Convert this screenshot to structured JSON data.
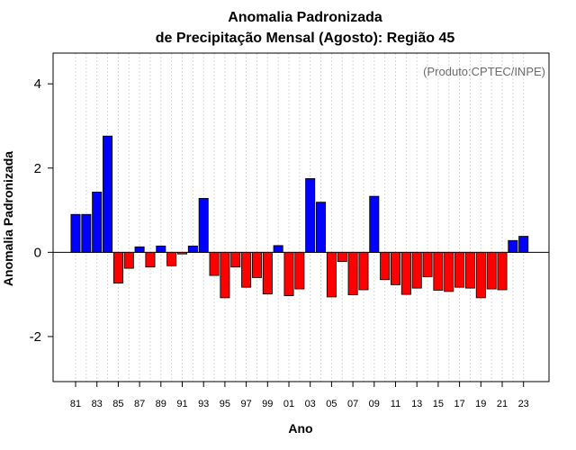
{
  "chart_data": {
    "type": "bar",
    "title_line1": "Anomalia Padronizada",
    "title_line2": "de Precipitação Mensal (Agosto): Região 45",
    "xlabel": "Ano",
    "ylabel": "Anomalia Padronizada",
    "annotation": "(Produto:CPTEC/INPE)",
    "ylim": [
      -3.07,
      4.73
    ],
    "yticks": [
      -2,
      0,
      2,
      4
    ],
    "ytick_labels": [
      "-2",
      "0",
      "2",
      "4"
    ],
    "years": [
      1981,
      1982,
      1983,
      1984,
      1985,
      1986,
      1987,
      1988,
      1989,
      1990,
      1991,
      1992,
      1993,
      1994,
      1995,
      1996,
      1997,
      1998,
      1999,
      2000,
      2001,
      2002,
      2003,
      2004,
      2005,
      2006,
      2007,
      2008,
      2009,
      2010,
      2011,
      2012,
      2013,
      2014,
      2015,
      2016,
      2017,
      2018,
      2019,
      2020,
      2021,
      2022,
      2023
    ],
    "xtick_labels": [
      "81",
      "83",
      "85",
      "87",
      "89",
      "91",
      "93",
      "95",
      "97",
      "99",
      "01",
      "03",
      "05",
      "07",
      "09",
      "11",
      "13",
      "15",
      "17",
      "19",
      "21",
      "23"
    ],
    "values": [
      0.9,
      0.9,
      1.43,
      2.76,
      -0.73,
      -0.38,
      0.13,
      -0.35,
      0.15,
      -0.32,
      -0.04,
      0.15,
      1.28,
      -0.55,
      -1.08,
      -0.35,
      -0.83,
      -0.6,
      -0.99,
      0.16,
      -1.03,
      -0.87,
      1.75,
      1.19,
      -1.06,
      -0.22,
      -1.01,
      -0.89,
      1.33,
      -0.65,
      -0.77,
      -1.0,
      -0.85,
      -0.58,
      -0.9,
      -0.93,
      -0.83,
      -0.85,
      -1.08,
      -0.87,
      -0.89,
      0.28,
      0.38
    ],
    "colors": {
      "positive": "#0000ff",
      "negative": "#ff0000"
    }
  }
}
